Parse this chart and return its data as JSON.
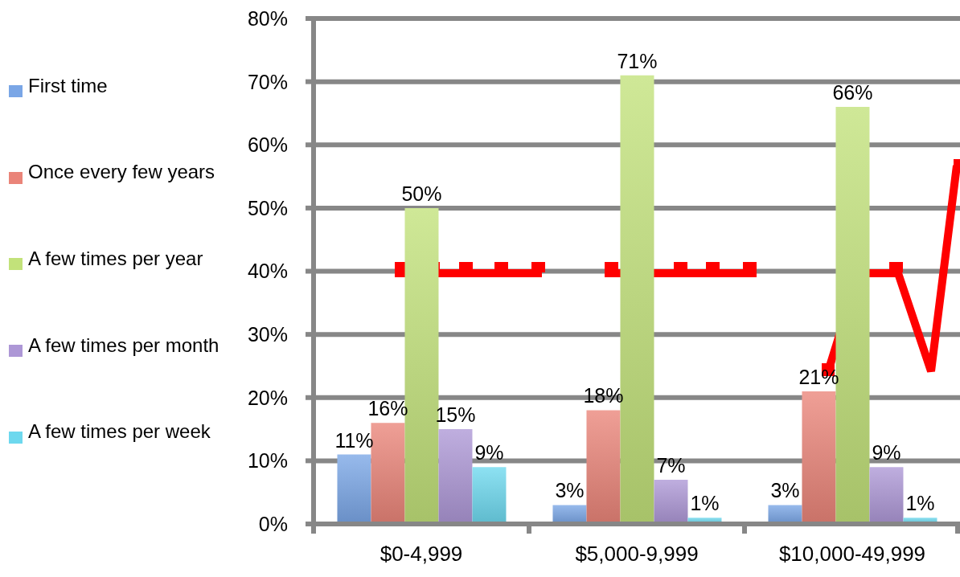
{
  "chart_data": {
    "type": "bar",
    "categories": [
      "$0-4,999",
      "$5,000-9,999",
      "$10,000-49,999"
    ],
    "series": [
      {
        "name": "First time",
        "color": "#7aa6e6",
        "values": [
          11,
          3,
          3
        ],
        "value_labels": [
          "11%",
          "3%",
          "3%"
        ]
      },
      {
        "name": "Once every few years",
        "color": "#ea8479",
        "values": [
          16,
          18,
          21
        ],
        "value_labels": [
          "16%",
          "18%",
          "21%"
        ]
      },
      {
        "name": "A few times per year",
        "color": "#c2e27a",
        "values": [
          50,
          71,
          66
        ],
        "value_labels": [
          "50%",
          "71%",
          "66%"
        ]
      },
      {
        "name": "A few times per month",
        "color": "#ad97d6",
        "values": [
          15,
          7,
          9
        ],
        "value_labels": [
          "15%",
          "7%",
          "9%"
        ]
      },
      {
        "name": "A few times per week",
        "color": "#6dd8ee",
        "values": [
          9,
          1,
          1
        ],
        "value_labels": [
          "9%",
          "1%",
          "1%"
        ]
      }
    ],
    "ylim": [
      0,
      80
    ],
    "yticks": [
      {
        "value": 0,
        "label": "0%"
      },
      {
        "value": 10,
        "label": "10%"
      },
      {
        "value": 20,
        "label": "20%"
      },
      {
        "value": 30,
        "label": "30%"
      },
      {
        "value": 40,
        "label": "40%"
      },
      {
        "value": 50,
        "label": "50%"
      },
      {
        "value": 60,
        "label": "60%"
      },
      {
        "value": 70,
        "label": "70%"
      },
      {
        "value": 80,
        "label": "80%"
      }
    ],
    "grid": "y",
    "legend": "left"
  }
}
